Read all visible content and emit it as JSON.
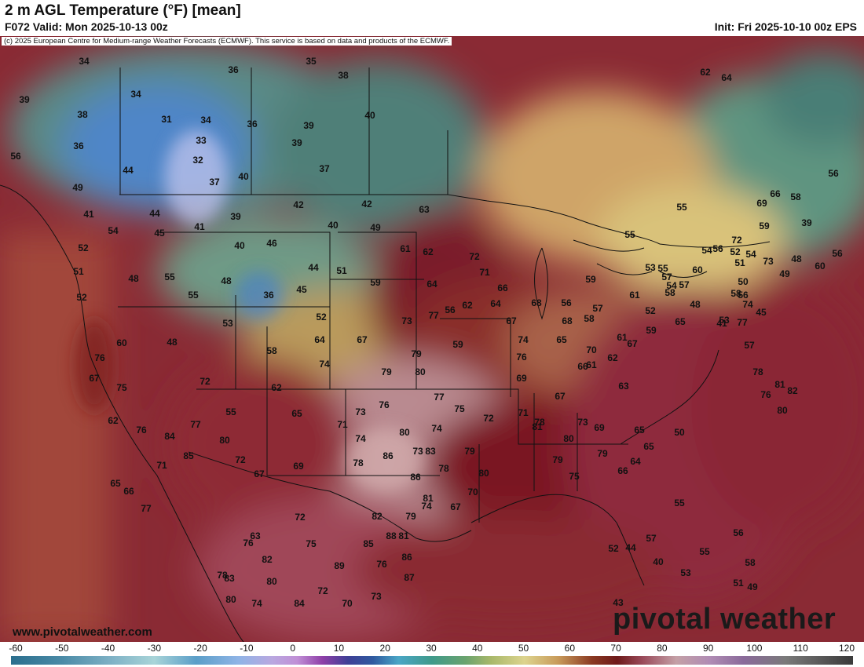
{
  "header": {
    "title": "2 m AGL Temperature (°F) [mean]",
    "valid": "F072 Valid: Mon 2025-10-13 00z",
    "init": "Init: Fri 2025-10-10 00z EPS"
  },
  "map": {
    "copyright": "(c) 2025 European Centre for Medium-range Weather Forecasts (ECMWF). This service is based on data and products of the ECMWF.",
    "website": "www.pivotalweather.com",
    "brand": "pivotal weather",
    "temperature_labels": [
      "34",
      "35",
      "36",
      "38",
      "39",
      "34",
      "38",
      "31",
      "34",
      "33",
      "36",
      "32",
      "36",
      "39",
      "56",
      "44",
      "37",
      "40",
      "39",
      "37",
      "40",
      "49",
      "41",
      "44",
      "39",
      "42",
      "42",
      "54",
      "45",
      "41",
      "40",
      "49",
      "46",
      "52",
      "51",
      "48",
      "55",
      "48",
      "40",
      "61",
      "59",
      "44",
      "51",
      "45",
      "36",
      "52",
      "55",
      "52",
      "53",
      "63",
      "58",
      "64",
      "67",
      "60",
      "48",
      "76",
      "67",
      "74",
      "73",
      "77",
      "72",
      "62",
      "55",
      "75",
      "62",
      "76",
      "84",
      "85",
      "77",
      "80",
      "72",
      "67",
      "69",
      "65",
      "71",
      "73",
      "74",
      "79",
      "79",
      "80",
      "76",
      "77",
      "75",
      "74",
      "80",
      "73",
      "78",
      "86",
      "83",
      "86",
      "79",
      "72",
      "67",
      "78",
      "80",
      "70",
      "81",
      "82",
      "79",
      "88",
      "85",
      "76",
      "89",
      "72",
      "70",
      "73",
      "78",
      "82",
      "87",
      "86",
      "81",
      "74",
      "72",
      "75",
      "80",
      "74",
      "84",
      "83",
      "82",
      "80",
      "78",
      "76",
      "63",
      "77",
      "71",
      "66",
      "65",
      "64",
      "62",
      "72",
      "71",
      "59",
      "56",
      "64",
      "62",
      "67",
      "66",
      "68",
      "74",
      "76",
      "68",
      "69",
      "71",
      "81",
      "80",
      "79",
      "78",
      "75",
      "73",
      "79",
      "69",
      "66",
      "65",
      "65",
      "64",
      "63",
      "62",
      "61",
      "65",
      "67",
      "70",
      "66",
      "67",
      "61",
      "58",
      "56",
      "57",
      "59",
      "59",
      "61",
      "52",
      "55",
      "57",
      "58",
      "65",
      "60",
      "58",
      "57",
      "54",
      "56",
      "53",
      "55",
      "52",
      "54",
      "55",
      "48",
      "53",
      "56",
      "57",
      "45",
      "54",
      "51",
      "50",
      "49",
      "41",
      "48",
      "39",
      "60",
      "56",
      "58",
      "56",
      "59",
      "62",
      "64",
      "66",
      "69",
      "72",
      "73",
      "74",
      "77",
      "78",
      "76",
      "81",
      "82",
      "80",
      "50",
      "44",
      "40",
      "43",
      "52",
      "57",
      "55",
      "53",
      "55",
      "56",
      "58",
      "51",
      "49",
      "45",
      "50",
      "55"
    ]
  },
  "colorbar": {
    "ticks": [
      "-60",
      "-50",
      "-40",
      "-30",
      "-20",
      "-10",
      "0",
      "10",
      "20",
      "30",
      "40",
      "50",
      "60",
      "70",
      "80",
      "90",
      "100",
      "110",
      "120"
    ]
  }
}
